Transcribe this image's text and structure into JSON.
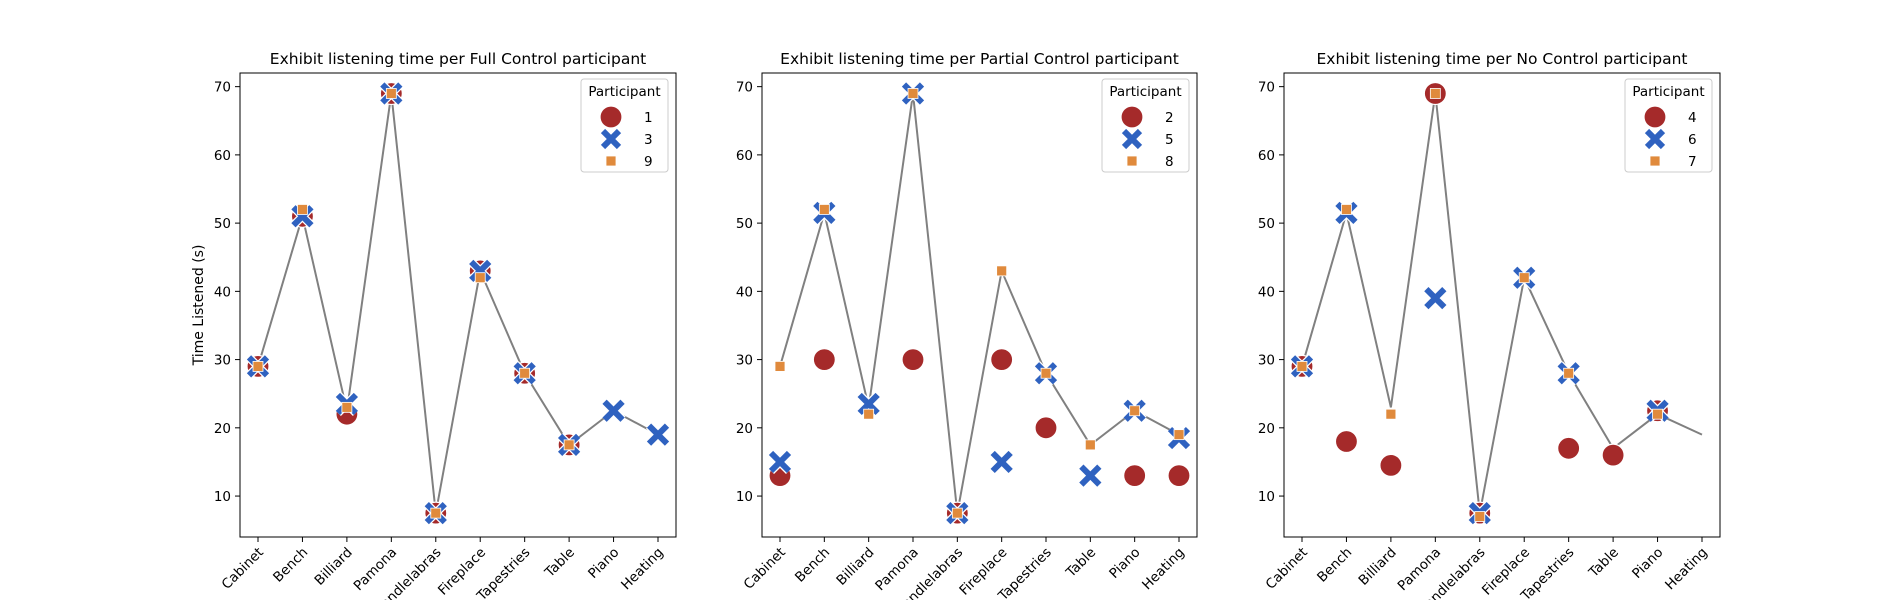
{
  "ylabel": "Time Listened (s)",
  "legend_title": "Participant",
  "colors": {
    "circle": "#a52a2a",
    "cross": "#2f62c0",
    "square": "#e08a3c",
    "line": "#808080"
  },
  "chart_data": [
    {
      "type": "scatter",
      "title": "Exhibit listening time per Full Control participant",
      "categories": [
        "Cabinet",
        "Bench",
        "Billiard",
        "Pamona",
        "Candlelabras",
        "Fireplace",
        "Tapestries",
        "Table",
        "Piano",
        "Heating"
      ],
      "ylim": [
        4,
        72
      ],
      "yticks": [
        10,
        20,
        30,
        40,
        50,
        60,
        70
      ],
      "line": [
        29,
        51,
        22.5,
        69,
        7.5,
        43,
        28,
        17.5,
        22.5,
        19
      ],
      "legend_position": "top-right",
      "series": [
        {
          "name": "1",
          "marker": "circle",
          "values": [
            29,
            51,
            22,
            69,
            7.5,
            43,
            28,
            17.5,
            null,
            null
          ]
        },
        {
          "name": "3",
          "marker": "cross",
          "values": [
            29,
            51,
            23.5,
            69,
            7.5,
            43,
            28,
            17.5,
            22.5,
            19
          ]
        },
        {
          "name": "9",
          "marker": "square",
          "values": [
            29,
            52,
            23,
            69,
            7.5,
            42,
            28,
            17.5,
            null,
            null
          ]
        }
      ]
    },
    {
      "type": "scatter",
      "title": "Exhibit listening time per Partial Control participant",
      "categories": [
        "Cabinet",
        "Bench",
        "Billiard",
        "Pamona",
        "Candlelabras",
        "Fireplace",
        "Tapestries",
        "Table",
        "Piano",
        "Heating"
      ],
      "ylim": [
        4,
        72
      ],
      "yticks": [
        10,
        20,
        30,
        40,
        50,
        60,
        70
      ],
      "line": [
        29,
        51.5,
        23,
        69,
        7.5,
        43,
        28,
        17.5,
        22.5,
        19
      ],
      "legend_position": "top-right",
      "series": [
        {
          "name": "2",
          "marker": "circle",
          "values": [
            13,
            30,
            null,
            30,
            7.5,
            30,
            20,
            null,
            13,
            13
          ]
        },
        {
          "name": "5",
          "marker": "cross",
          "values": [
            15,
            51.5,
            23.5,
            69,
            7.5,
            15,
            28,
            13,
            22.5,
            18.5
          ]
        },
        {
          "name": "8",
          "marker": "square",
          "values": [
            29,
            52,
            22,
            69,
            7.5,
            43,
            28,
            17.5,
            22.5,
            19
          ]
        }
      ]
    },
    {
      "type": "scatter",
      "title": "Exhibit listening time per No Control participant",
      "categories": [
        "Cabinet",
        "Bench",
        "Billiard",
        "Pamona",
        "Candlelabras",
        "Fireplace",
        "Tapestries",
        "Table",
        "Piano",
        "Heating"
      ],
      "ylim": [
        4,
        72
      ],
      "yticks": [
        10,
        20,
        30,
        40,
        50,
        60,
        70
      ],
      "line": [
        29,
        51.5,
        23,
        69,
        7.5,
        42,
        28,
        17,
        22,
        19
      ],
      "legend_position": "top-right",
      "series": [
        {
          "name": "4",
          "marker": "circle",
          "values": [
            29,
            18,
            14.5,
            69,
            7.5,
            null,
            17,
            16,
            22.5,
            null
          ]
        },
        {
          "name": "6",
          "marker": "cross",
          "values": [
            29,
            51.5,
            null,
            39,
            7.5,
            42,
            28,
            null,
            22.5,
            null
          ]
        },
        {
          "name": "7",
          "marker": "square",
          "values": [
            29,
            52,
            22,
            69,
            7,
            42,
            28,
            null,
            22,
            null
          ]
        }
      ]
    }
  ]
}
